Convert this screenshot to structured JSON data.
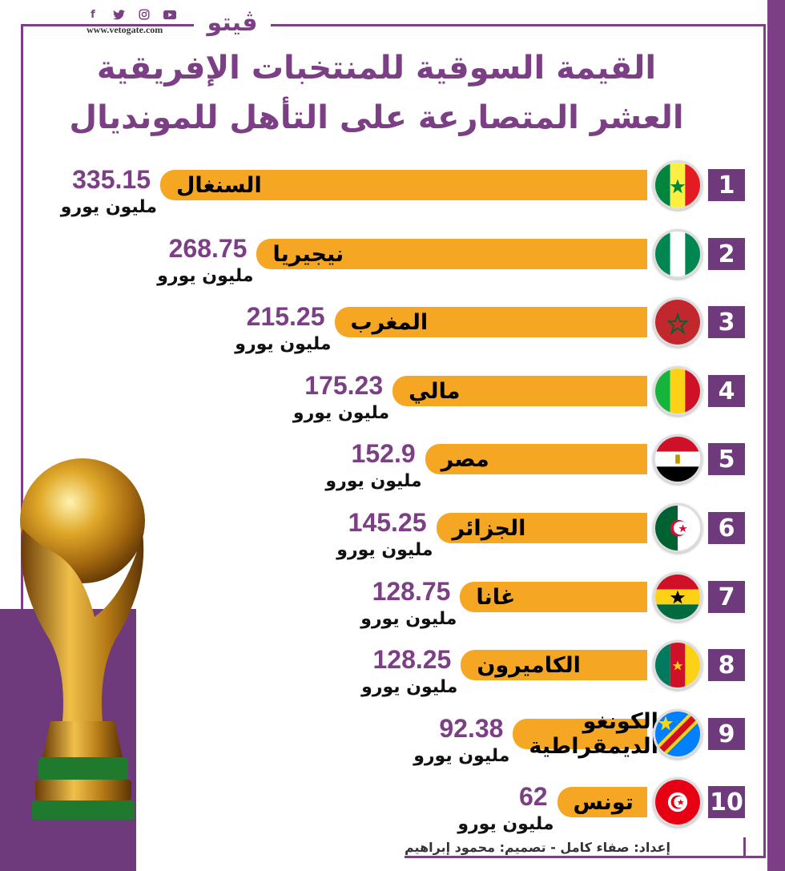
{
  "header": {
    "site_url": "www.vetogate.com",
    "logo_text": "ڤيتو",
    "social_icons": [
      "facebook-icon",
      "twitter-icon",
      "instagram-icon",
      "youtube-icon"
    ]
  },
  "title_line1": "القيمة السوقية للمنتخبات الإفريقية",
  "title_line2": "العشر المتصارعة على التأهل للمونديال",
  "unit": "مليون يورو",
  "credits": "إعداد: صفاء كامل - تصميم: محمود إبراهيم",
  "colors": {
    "accent": "#7c3f86",
    "bar": "#f5a623",
    "number_box": "#6e3a7c"
  },
  "chart_data": {
    "type": "bar",
    "orientation": "horizontal",
    "title": "القيمة السوقية للمنتخبات الإفريقية العشر المتصارعة على التأهل للمونديال",
    "unit": "مليون يورو",
    "categories": [
      "السنغال",
      "نيجيريا",
      "المغرب",
      "مالي",
      "مصر",
      "الجزائر",
      "غانا",
      "الكاميرون",
      "الكونغو الديمقراطية",
      "تونس"
    ],
    "ranks": [
      "1",
      "2",
      "3",
      "4",
      "5",
      "6",
      "7",
      "8",
      "9",
      "10"
    ],
    "values": [
      335.15,
      268.75,
      215.25,
      175.23,
      152.9,
      145.25,
      128.75,
      128.25,
      92.38,
      62
    ],
    "value_labels": [
      "335.15",
      "268.75",
      "215.25",
      "175.23",
      "152.9",
      "145.25",
      "128.75",
      "128.25",
      "92.38",
      "62"
    ],
    "flags": [
      "senegal-flag-icon",
      "nigeria-flag-icon",
      "morocco-flag-icon",
      "mali-flag-icon",
      "egypt-flag-icon",
      "algeria-flag-icon",
      "ghana-flag-icon",
      "cameroon-flag-icon",
      "dr-congo-flag-icon",
      "tunisia-flag-icon"
    ]
  }
}
